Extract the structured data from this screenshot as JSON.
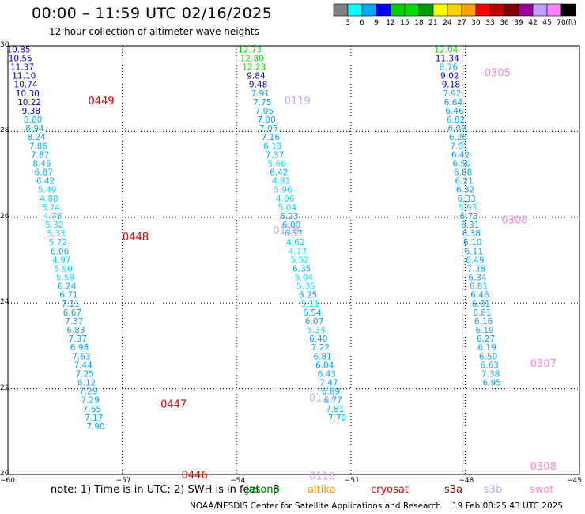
{
  "title": "00:00 – 11:59 UTC 02/16/2025",
  "subtitle": "12 hour collection of altimeter wave heights",
  "legend": {
    "colors": [
      "#808080",
      "#00ffff",
      "#00a8ff",
      "#0000ff",
      "#00d000",
      "#00e000",
      "#00a000",
      "#ffff00",
      "#ffd000",
      "#ffa000",
      "#ff0000",
      "#c00000",
      "#800000",
      "#a000a0",
      "#c0a0ff",
      "#ff80ff",
      "#000000"
    ],
    "labels": [
      "3",
      "6",
      "9",
      "12",
      "15",
      "18",
      "21",
      "24",
      "27",
      "30",
      "33",
      "36",
      "39",
      "42",
      "45",
      "70",
      "(ft)"
    ]
  },
  "axes": {
    "x_labels": [
      "−60",
      "−57",
      "−54",
      "−51",
      "−48",
      "−45"
    ],
    "y_labels": [
      "30",
      "28",
      "26",
      "24",
      "22",
      "20"
    ],
    "xlim": [
      -60,
      -45
    ],
    "ylim": [
      20,
      30
    ]
  },
  "chart_data": {
    "type": "scatter",
    "tracks": [
      {
        "lon0": -59.72,
        "lat0": 29.92,
        "dlon": 0.047,
        "dlat": -0.2045,
        "values": [
          "10.85",
          "10.55",
          "11.37",
          "11.10",
          "10.74",
          "10.30",
          "10.22",
          "9.38",
          "8.80",
          "8.94",
          "8.24",
          "7.86",
          "7.87",
          "8.45",
          "6.87",
          "6.42",
          "5.49",
          "4.88",
          "5.24",
          "4.78",
          "5.32",
          "5.33",
          "5.72",
          "6.06",
          "4.97",
          "5.90",
          "5.58",
          "6.24",
          "6.71",
          "7.11",
          "6.67",
          "7.37",
          "6.83",
          "7.37",
          "6.98",
          "7.63",
          "7.44",
          "7.25",
          "8.12",
          "7.29",
          "7.29",
          "7.65",
          "7.17",
          "7.90"
        ]
      },
      {
        "lon0": -53.65,
        "lat0": 29.92,
        "dlon": 0.0545,
        "dlat": -0.2045,
        "values": [
          "12.73",
          "12.80",
          "12.23",
          "9.84",
          "9.48",
          "7.91",
          "7.75",
          "7.05",
          "7.00",
          "7.05",
          "7.16",
          "6.13",
          "7.37",
          "5.66",
          "6.42",
          "4.81",
          "5.96",
          "4.06",
          "5.04",
          "6.23",
          "6.00",
          "6.37",
          "4.62",
          "4.77",
          "5.52",
          "6.35",
          "5.04",
          "5.35",
          "6.25",
          "5.11",
          "6.54",
          "6.07",
          "5.34",
          "6.40",
          "7.22",
          "6.81",
          "6.04",
          "6.43",
          "7.47",
          "6.89",
          "6.77",
          "7.81",
          "7.70"
        ]
      },
      {
        "lon0": -48.5,
        "lat0": 29.92,
        "dlon": 0.0316,
        "dlat": -0.2045,
        "values": [
          "12.04",
          "11.34",
          "8.76",
          "9.02",
          "9.18",
          "7.92",
          "6.64",
          "6.46",
          "6.82",
          "6.09",
          "6.26",
          "7.01",
          "6.42",
          "6.50",
          "6.88",
          "6.21",
          "6.32",
          "6.33",
          "5.93",
          "6.73",
          "6.31",
          "6.38",
          "6.10",
          "6.11",
          "6.49",
          "7.38",
          "6.34",
          "6.81",
          "6.46",
          "6.01",
          "6.81",
          "6.16",
          "6.19",
          "6.27",
          "6.19",
          "6.50",
          "6.63",
          "7.38",
          "6.95"
        ]
      }
    ],
    "orbit_labels": [
      {
        "text": "0449",
        "lon": -57.55,
        "lat": 28.73,
        "sat": "cryosat"
      },
      {
        "text": "0448",
        "lon": -56.65,
        "lat": 25.55,
        "sat": "cryosat"
      },
      {
        "text": "0447",
        "lon": -55.65,
        "lat": 21.65,
        "sat": "cryosat"
      },
      {
        "text": "0446",
        "lon": -55.1,
        "lat": 20.0,
        "sat": "cryosat"
      },
      {
        "text": "0119",
        "lon": -52.4,
        "lat": 28.73,
        "sat": "s3b"
      },
      {
        "text": "0118",
        "lon": -52.7,
        "lat": 25.7,
        "sat": "s3b"
      },
      {
        "text": "0117",
        "lon": -51.75,
        "lat": 21.8,
        "sat": "s3b"
      },
      {
        "text": "0116",
        "lon": -51.75,
        "lat": 19.97,
        "sat": "s3b"
      },
      {
        "text": "0305",
        "lon": -47.15,
        "lat": 29.38,
        "sat": "swot"
      },
      {
        "text": "0306",
        "lon": -46.7,
        "lat": 25.95,
        "sat": "swot"
      },
      {
        "text": "0307",
        "lon": -45.95,
        "lat": 22.6,
        "sat": "swot"
      },
      {
        "text": "0308",
        "lon": -45.95,
        "lat": 20.2,
        "sat": "swot"
      }
    ]
  },
  "colors": {
    "cryosat": "#e00000",
    "s3b": "#c8a8f0",
    "swot": "#ff80e0"
  },
  "footer": {
    "note": "note:  1) Time is in UTC;  2) SWH is in feet",
    "satellites": [
      {
        "name": "jason3",
        "color": "#000000"
      },
      {
        "name": "jasonp",
        "color": "#00a000"
      },
      {
        "name": "altika",
        "color": "#ff9000"
      },
      {
        "name": "cryosat",
        "color": "#e00000"
      },
      {
        "name": "s3a",
        "color": "#a00000"
      },
      {
        "name": "s3b",
        "color": "#c8a8f0"
      },
      {
        "name": "swot",
        "color": "#ff80e0"
      }
    ],
    "credit": "NOAA/NESDIS Center for Satellite Applications and Research",
    "timestamp": "19 Feb 08:25:43 UTC 2025"
  }
}
